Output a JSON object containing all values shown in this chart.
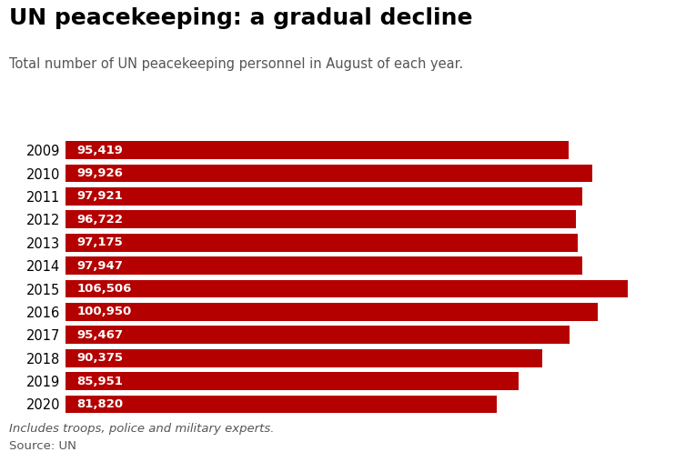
{
  "title": "UN peacekeeping: a gradual decline",
  "subtitle": "Total number of UN peacekeeping personnel in August of each year.",
  "footnote": "Includes troops, police and military experts.",
  "source": "Source: UN",
  "years": [
    "2009",
    "2010",
    "2011",
    "2012",
    "2013",
    "2014",
    "2015",
    "2016",
    "2017",
    "2018",
    "2019",
    "2020"
  ],
  "values": [
    95419,
    99926,
    97921,
    96722,
    97175,
    97947,
    106506,
    100950,
    95467,
    90375,
    85951,
    81820
  ],
  "labels": [
    "95,419",
    "99,926",
    "97,921",
    "96,722",
    "97,175",
    "97,947",
    "106,506",
    "100,950",
    "95,467",
    "90,375",
    "85,951",
    "81,820"
  ],
  "bar_color": "#b50000",
  "label_color": "#ffffff",
  "background_color": "#ffffff",
  "title_fontsize": 18,
  "subtitle_fontsize": 10.5,
  "label_fontsize": 9.5,
  "year_fontsize": 10.5,
  "footnote_fontsize": 9.5,
  "xlim_max": 115000
}
